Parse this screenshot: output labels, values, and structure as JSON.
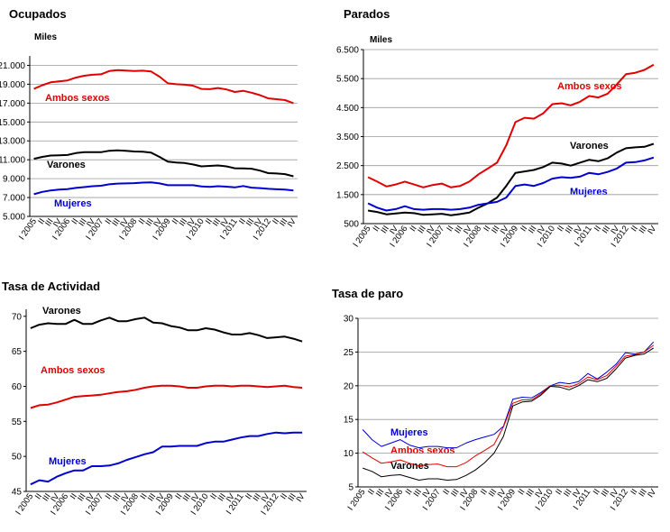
{
  "periods": [
    "I 2005",
    "II",
    "III",
    "IV",
    "I 2006",
    "II",
    "III",
    "IV",
    "I 2007",
    "II",
    "III",
    "IV",
    "I 2008",
    "II",
    "III",
    "IV",
    "I 2009",
    "II",
    "III",
    "IV",
    "I 2010",
    "II",
    "III",
    "IV",
    "I 2011",
    "II",
    "III",
    "IV",
    "I 2012",
    "II",
    "III",
    "IV"
  ],
  "colors": {
    "Ambos sexos": "#e00000",
    "Varones": "#000000",
    "Mujeres": "#0000d0"
  },
  "chart_data": [
    {
      "type": "line",
      "title": "Ocupados",
      "unit": "Miles",
      "ylim": [
        5000,
        22000
      ],
      "yticks": [
        5000,
        7000,
        9000,
        11000,
        13000,
        15000,
        17000,
        19000,
        21000
      ],
      "ytick_labels": [
        "5.000",
        "7.000",
        "9.000",
        "11.000",
        "13.000",
        "15.000",
        "17.000",
        "19.000",
        "21.000"
      ],
      "grid": true,
      "series": [
        {
          "name": "Ambos sexos",
          "label": "Ambos sexos",
          "values": [
            18500,
            18900,
            19200,
            19300,
            19400,
            19700,
            19900,
            20000,
            20050,
            20400,
            20500,
            20450,
            20400,
            20430,
            20350,
            19800,
            19100,
            19000,
            18950,
            18850,
            18500,
            18480,
            18600,
            18450,
            18180,
            18300,
            18100,
            17850,
            17500,
            17420,
            17320,
            17000
          ]
        },
        {
          "name": "Varones",
          "label": "Varones",
          "values": [
            11100,
            11300,
            11450,
            11480,
            11500,
            11700,
            11800,
            11800,
            11800,
            11950,
            12000,
            11950,
            11880,
            11850,
            11750,
            11300,
            10800,
            10700,
            10650,
            10500,
            10300,
            10350,
            10400,
            10300,
            10100,
            10080,
            10050,
            9850,
            9580,
            9550,
            9480,
            9250
          ]
        },
        {
          "name": "Mujeres",
          "label": "Mujeres",
          "values": [
            7350,
            7600,
            7750,
            7850,
            7880,
            8020,
            8100,
            8200,
            8250,
            8400,
            8480,
            8500,
            8520,
            8580,
            8600,
            8500,
            8300,
            8300,
            8300,
            8300,
            8180,
            8130,
            8200,
            8150,
            8080,
            8220,
            8050,
            8000,
            7920,
            7870,
            7840,
            7750
          ]
        }
      ]
    },
    {
      "type": "line",
      "title": "Parados",
      "unit": "Miles",
      "ylim": [
        500,
        6500
      ],
      "yticks": [
        500,
        1500,
        2500,
        3500,
        4500,
        5500,
        6500
      ],
      "ytick_labels": [
        "500",
        "1.500",
        "2.500",
        "3.500",
        "4.500",
        "5.500",
        "6.500"
      ],
      "grid": true,
      "series": [
        {
          "name": "Ambos sexos",
          "label": "Ambos sexos",
          "values": [
            2100,
            1950,
            1780,
            1850,
            1950,
            1850,
            1750,
            1830,
            1880,
            1750,
            1800,
            1950,
            2200,
            2400,
            2600,
            3200,
            4000,
            4150,
            4120,
            4300,
            4620,
            4650,
            4580,
            4700,
            4900,
            4850,
            4980,
            5300,
            5650,
            5700,
            5800,
            5980
          ]
        },
        {
          "name": "Varones",
          "label": "Varones",
          "values": [
            950,
            900,
            820,
            850,
            880,
            860,
            800,
            820,
            840,
            790,
            830,
            880,
            1050,
            1200,
            1400,
            1800,
            2250,
            2300,
            2350,
            2450,
            2600,
            2570,
            2500,
            2600,
            2700,
            2650,
            2750,
            2950,
            3100,
            3130,
            3150,
            3250
          ]
        },
        {
          "name": "Mujeres",
          "label": "Mujeres",
          "values": [
            1200,
            1050,
            950,
            1000,
            1100,
            1000,
            980,
            1000,
            1000,
            980,
            1000,
            1050,
            1150,
            1200,
            1250,
            1400,
            1800,
            1850,
            1800,
            1900,
            2050,
            2100,
            2080,
            2120,
            2250,
            2200,
            2280,
            2400,
            2600,
            2620,
            2680,
            2780
          ]
        }
      ]
    },
    {
      "type": "line",
      "title": "Tasa de Actividad",
      "unit": "",
      "ylim": [
        45,
        71
      ],
      "yticks": [
        45,
        50,
        55,
        60,
        65,
        70
      ],
      "ytick_labels": [
        "45",
        "50",
        "55",
        "60",
        "65",
        "70"
      ],
      "grid": false,
      "series": [
        {
          "name": "Varones",
          "label": "Varones",
          "values": [
            68.3,
            68.8,
            69.0,
            68.9,
            68.9,
            69.5,
            68.9,
            68.9,
            69.4,
            69.8,
            69.3,
            69.3,
            69.6,
            69.8,
            69.1,
            69.0,
            68.6,
            68.4,
            68.0,
            68.0,
            68.3,
            68.1,
            67.7,
            67.4,
            67.4,
            67.6,
            67.3,
            66.9,
            67.0,
            67.1,
            66.8,
            66.4
          ]
        },
        {
          "name": "Ambos sexos",
          "label": "Ambos sexos",
          "values": [
            56.9,
            57.3,
            57.4,
            57.7,
            58.1,
            58.5,
            58.6,
            58.7,
            58.8,
            59.0,
            59.2,
            59.3,
            59.5,
            59.8,
            60.0,
            60.1,
            60.1,
            60.0,
            59.8,
            59.8,
            60.0,
            60.1,
            60.1,
            60.0,
            60.1,
            60.1,
            60.0,
            59.9,
            60.0,
            60.1,
            59.9,
            59.8
          ]
        },
        {
          "name": "Mujeres",
          "label": "Mujeres",
          "values": [
            46.0,
            46.6,
            46.4,
            47.1,
            47.6,
            48.0,
            48.0,
            48.6,
            48.6,
            48.7,
            49.0,
            49.5,
            49.9,
            50.3,
            50.6,
            51.4,
            51.4,
            51.5,
            51.5,
            51.5,
            51.9,
            52.1,
            52.1,
            52.4,
            52.7,
            52.9,
            52.9,
            53.2,
            53.4,
            53.3,
            53.4,
            53.4
          ]
        }
      ]
    },
    {
      "type": "line",
      "title": "Tasa de paro",
      "unit": "",
      "ylim": [
        5,
        30
      ],
      "yticks": [
        5,
        10,
        15,
        20,
        25,
        30
      ],
      "ytick_labels": [
        "5",
        "10",
        "15",
        "20",
        "25",
        "30"
      ],
      "grid": true,
      "series": [
        {
          "name": "Mujeres",
          "label": "Mujeres",
          "values": [
            13.5,
            12.0,
            11.0,
            11.5,
            12.0,
            11.2,
            10.8,
            11.0,
            11.0,
            10.8,
            10.8,
            11.5,
            12.0,
            12.4,
            12.8,
            14.0,
            18.0,
            18.3,
            18.2,
            19.0,
            20.0,
            20.5,
            20.3,
            20.6,
            21.8,
            21.0,
            22.0,
            23.2,
            24.9,
            24.7,
            25.0,
            26.5
          ]
        },
        {
          "name": "Ambos sexos",
          "label": "Ambos sexos",
          "values": [
            10.2,
            9.3,
            8.5,
            8.7,
            9.0,
            8.5,
            8.1,
            8.3,
            8.4,
            8.0,
            8.0,
            8.6,
            9.6,
            10.4,
            11.3,
            13.9,
            17.4,
            17.9,
            17.9,
            18.8,
            20.0,
            20.1,
            19.8,
            20.3,
            21.3,
            20.9,
            21.5,
            22.9,
            24.4,
            24.6,
            25.0,
            26.0
          ]
        },
        {
          "name": "Varones",
          "label": "Varones",
          "values": [
            7.8,
            7.3,
            6.5,
            6.7,
            6.8,
            6.4,
            6.0,
            6.2,
            6.2,
            6.0,
            6.1,
            6.7,
            7.5,
            8.6,
            10.0,
            12.5,
            17.0,
            17.6,
            17.7,
            18.6,
            19.9,
            19.8,
            19.4,
            20.0,
            20.9,
            20.6,
            21.1,
            22.5,
            24.1,
            24.5,
            24.7,
            25.6
          ]
        }
      ]
    }
  ]
}
